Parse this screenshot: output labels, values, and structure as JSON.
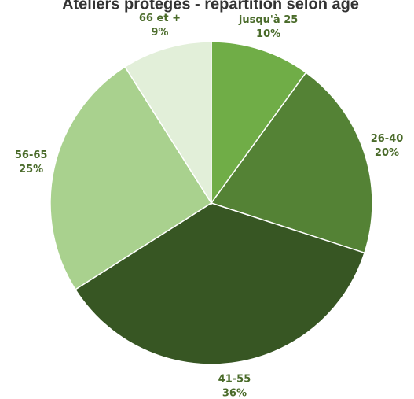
{
  "chart_data": {
    "type": "pie",
    "title": "Ateliers protégés - répartition selon âge",
    "categories": [
      "jusqu'à 25",
      "26-40",
      "41-55",
      "56-65",
      "66 et +"
    ],
    "values": [
      10,
      20,
      36,
      25,
      9
    ],
    "value_labels": [
      "10%",
      "20%",
      "36%",
      "25%",
      "9%"
    ],
    "colors": [
      "#70ad47",
      "#548235",
      "#375623",
      "#a9d18e",
      "#e2efd9"
    ]
  }
}
